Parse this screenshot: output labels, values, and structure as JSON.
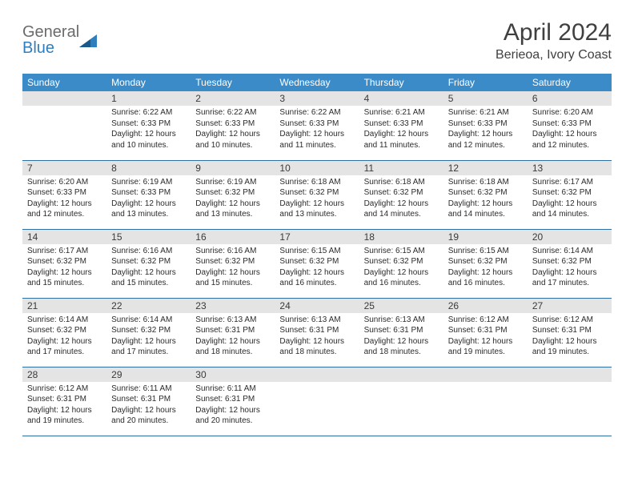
{
  "logo": {
    "word1": "General",
    "word2": "Blue"
  },
  "title": "April 2024",
  "location": "Berieoa, Ivory Coast",
  "weekdays": [
    "Sunday",
    "Monday",
    "Tuesday",
    "Wednesday",
    "Thursday",
    "Friday",
    "Saturday"
  ],
  "colors": {
    "header_bg": "#3b8bc9",
    "daynum_bg": "#e4e4e4",
    "row_border": "#2f6fa3",
    "logo_gray": "#6b6b6b",
    "logo_blue": "#2f7fbf",
    "text": "#2b2b2b"
  },
  "weeks": [
    [
      {
        "n": "",
        "sunrise": "",
        "sunset": "",
        "daylight": ""
      },
      {
        "n": "1",
        "sunrise": "Sunrise: 6:22 AM",
        "sunset": "Sunset: 6:33 PM",
        "daylight": "Daylight: 12 hours and 10 minutes."
      },
      {
        "n": "2",
        "sunrise": "Sunrise: 6:22 AM",
        "sunset": "Sunset: 6:33 PM",
        "daylight": "Daylight: 12 hours and 10 minutes."
      },
      {
        "n": "3",
        "sunrise": "Sunrise: 6:22 AM",
        "sunset": "Sunset: 6:33 PM",
        "daylight": "Daylight: 12 hours and 11 minutes."
      },
      {
        "n": "4",
        "sunrise": "Sunrise: 6:21 AM",
        "sunset": "Sunset: 6:33 PM",
        "daylight": "Daylight: 12 hours and 11 minutes."
      },
      {
        "n": "5",
        "sunrise": "Sunrise: 6:21 AM",
        "sunset": "Sunset: 6:33 PM",
        "daylight": "Daylight: 12 hours and 12 minutes."
      },
      {
        "n": "6",
        "sunrise": "Sunrise: 6:20 AM",
        "sunset": "Sunset: 6:33 PM",
        "daylight": "Daylight: 12 hours and 12 minutes."
      }
    ],
    [
      {
        "n": "7",
        "sunrise": "Sunrise: 6:20 AM",
        "sunset": "Sunset: 6:33 PM",
        "daylight": "Daylight: 12 hours and 12 minutes."
      },
      {
        "n": "8",
        "sunrise": "Sunrise: 6:19 AM",
        "sunset": "Sunset: 6:33 PM",
        "daylight": "Daylight: 12 hours and 13 minutes."
      },
      {
        "n": "9",
        "sunrise": "Sunrise: 6:19 AM",
        "sunset": "Sunset: 6:32 PM",
        "daylight": "Daylight: 12 hours and 13 minutes."
      },
      {
        "n": "10",
        "sunrise": "Sunrise: 6:18 AM",
        "sunset": "Sunset: 6:32 PM",
        "daylight": "Daylight: 12 hours and 13 minutes."
      },
      {
        "n": "11",
        "sunrise": "Sunrise: 6:18 AM",
        "sunset": "Sunset: 6:32 PM",
        "daylight": "Daylight: 12 hours and 14 minutes."
      },
      {
        "n": "12",
        "sunrise": "Sunrise: 6:18 AM",
        "sunset": "Sunset: 6:32 PM",
        "daylight": "Daylight: 12 hours and 14 minutes."
      },
      {
        "n": "13",
        "sunrise": "Sunrise: 6:17 AM",
        "sunset": "Sunset: 6:32 PM",
        "daylight": "Daylight: 12 hours and 14 minutes."
      }
    ],
    [
      {
        "n": "14",
        "sunrise": "Sunrise: 6:17 AM",
        "sunset": "Sunset: 6:32 PM",
        "daylight": "Daylight: 12 hours and 15 minutes."
      },
      {
        "n": "15",
        "sunrise": "Sunrise: 6:16 AM",
        "sunset": "Sunset: 6:32 PM",
        "daylight": "Daylight: 12 hours and 15 minutes."
      },
      {
        "n": "16",
        "sunrise": "Sunrise: 6:16 AM",
        "sunset": "Sunset: 6:32 PM",
        "daylight": "Daylight: 12 hours and 15 minutes."
      },
      {
        "n": "17",
        "sunrise": "Sunrise: 6:15 AM",
        "sunset": "Sunset: 6:32 PM",
        "daylight": "Daylight: 12 hours and 16 minutes."
      },
      {
        "n": "18",
        "sunrise": "Sunrise: 6:15 AM",
        "sunset": "Sunset: 6:32 PM",
        "daylight": "Daylight: 12 hours and 16 minutes."
      },
      {
        "n": "19",
        "sunrise": "Sunrise: 6:15 AM",
        "sunset": "Sunset: 6:32 PM",
        "daylight": "Daylight: 12 hours and 16 minutes."
      },
      {
        "n": "20",
        "sunrise": "Sunrise: 6:14 AM",
        "sunset": "Sunset: 6:32 PM",
        "daylight": "Daylight: 12 hours and 17 minutes."
      }
    ],
    [
      {
        "n": "21",
        "sunrise": "Sunrise: 6:14 AM",
        "sunset": "Sunset: 6:32 PM",
        "daylight": "Daylight: 12 hours and 17 minutes."
      },
      {
        "n": "22",
        "sunrise": "Sunrise: 6:14 AM",
        "sunset": "Sunset: 6:32 PM",
        "daylight": "Daylight: 12 hours and 17 minutes."
      },
      {
        "n": "23",
        "sunrise": "Sunrise: 6:13 AM",
        "sunset": "Sunset: 6:31 PM",
        "daylight": "Daylight: 12 hours and 18 minutes."
      },
      {
        "n": "24",
        "sunrise": "Sunrise: 6:13 AM",
        "sunset": "Sunset: 6:31 PM",
        "daylight": "Daylight: 12 hours and 18 minutes."
      },
      {
        "n": "25",
        "sunrise": "Sunrise: 6:13 AM",
        "sunset": "Sunset: 6:31 PM",
        "daylight": "Daylight: 12 hours and 18 minutes."
      },
      {
        "n": "26",
        "sunrise": "Sunrise: 6:12 AM",
        "sunset": "Sunset: 6:31 PM",
        "daylight": "Daylight: 12 hours and 19 minutes."
      },
      {
        "n": "27",
        "sunrise": "Sunrise: 6:12 AM",
        "sunset": "Sunset: 6:31 PM",
        "daylight": "Daylight: 12 hours and 19 minutes."
      }
    ],
    [
      {
        "n": "28",
        "sunrise": "Sunrise: 6:12 AM",
        "sunset": "Sunset: 6:31 PM",
        "daylight": "Daylight: 12 hours and 19 minutes."
      },
      {
        "n": "29",
        "sunrise": "Sunrise: 6:11 AM",
        "sunset": "Sunset: 6:31 PM",
        "daylight": "Daylight: 12 hours and 20 minutes."
      },
      {
        "n": "30",
        "sunrise": "Sunrise: 6:11 AM",
        "sunset": "Sunset: 6:31 PM",
        "daylight": "Daylight: 12 hours and 20 minutes."
      },
      {
        "n": "",
        "sunrise": "",
        "sunset": "",
        "daylight": ""
      },
      {
        "n": "",
        "sunrise": "",
        "sunset": "",
        "daylight": ""
      },
      {
        "n": "",
        "sunrise": "",
        "sunset": "",
        "daylight": ""
      },
      {
        "n": "",
        "sunrise": "",
        "sunset": "",
        "daylight": ""
      }
    ]
  ]
}
